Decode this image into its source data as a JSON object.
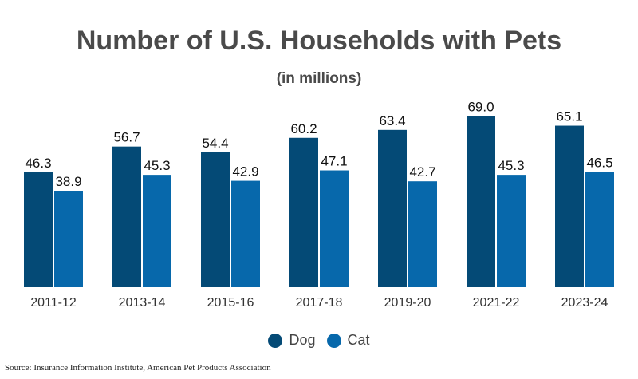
{
  "chart_data": {
    "type": "bar",
    "title": "Number of U.S. Households with Pets",
    "subtitle": "(in millions)",
    "categories": [
      "2011-12",
      "2013-14",
      "2015-16",
      "2017-18",
      "2019-20",
      "2021-22",
      "2023-24"
    ],
    "series": [
      {
        "name": "Dog",
        "color": "#044a76",
        "values": [
          46.3,
          56.7,
          54.4,
          60.2,
          63.4,
          69.0,
          65.1
        ]
      },
      {
        "name": "Cat",
        "color": "#0768ab",
        "values": [
          38.9,
          45.3,
          42.9,
          47.1,
          42.7,
          45.3,
          46.5
        ]
      }
    ],
    "ylim": [
      0,
      70
    ],
    "grid": false,
    "legend": "bottom"
  },
  "source": "Source: Insurance Information Institute, American Pet Products Association"
}
